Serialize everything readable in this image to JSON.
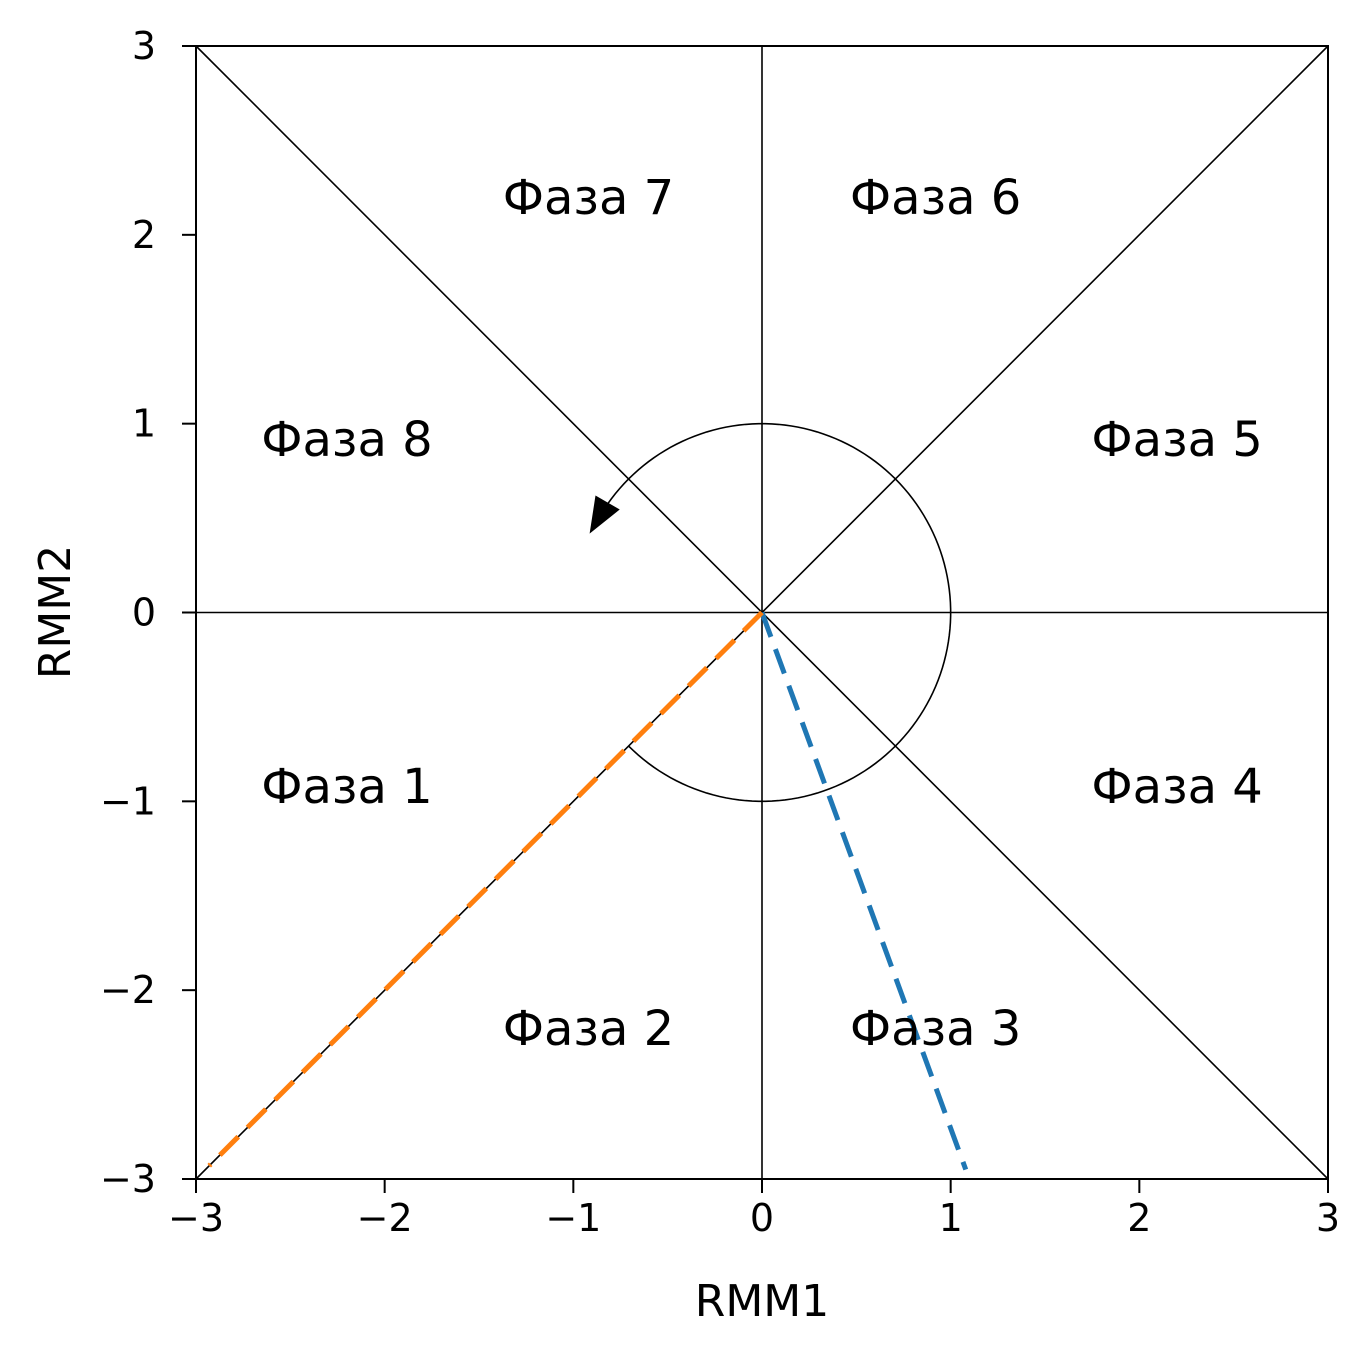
{
  "chart_data": {
    "type": "line",
    "title": "",
    "xlabel": "RMM1",
    "ylabel": "RMM2",
    "xlim": [
      -3,
      3
    ],
    "ylim": [
      -3,
      3
    ],
    "xticks": [
      -3,
      -2,
      -1,
      0,
      1,
      2,
      3
    ],
    "yticks": [
      -3,
      -2,
      -1,
      0,
      1,
      2,
      3
    ],
    "xtick_labels": [
      "−3",
      "−2",
      "−1",
      "0",
      "1",
      "2",
      "3"
    ],
    "ytick_labels": [
      "−3",
      "−2",
      "−1",
      "0",
      "1",
      "2",
      "3"
    ],
    "grid": false,
    "reference_lines": [
      {
        "x": [
          -3,
          3
        ],
        "y": [
          0,
          0
        ]
      },
      {
        "x": [
          0,
          0
        ],
        "y": [
          -3,
          3
        ]
      },
      {
        "x": [
          -3,
          3
        ],
        "y": [
          3,
          -3
        ]
      },
      {
        "x": [
          -3,
          3
        ],
        "y": [
          -3,
          3
        ]
      }
    ],
    "unit_circle": {
      "radius": 1,
      "start_angle_deg": 225,
      "end_angle_deg": 510,
      "direction": "counterclockwise",
      "arrow_at_end": true
    },
    "phase_labels": [
      {
        "text": "Фаза 1",
        "x": -2.2,
        "y": -0.92
      },
      {
        "text": "Фаза 2",
        "x": -0.92,
        "y": -2.2
      },
      {
        "text": "Фаза 3",
        "x": 0.92,
        "y": -2.2
      },
      {
        "text": "Фаза 4",
        "x": 2.2,
        "y": -0.92
      },
      {
        "text": "Фаза 5",
        "x": 2.2,
        "y": 0.92
      },
      {
        "text": "Фаза 6",
        "x": 0.92,
        "y": 2.2
      },
      {
        "text": "Фаза 7",
        "x": -0.92,
        "y": 2.2
      },
      {
        "text": "Фаза 8",
        "x": -2.2,
        "y": 0.92
      }
    ],
    "series": [
      {
        "color": "#1f77b4",
        "style": "dashed",
        "x": [
          0,
          1.08
        ],
        "y": [
          0,
          -2.95
        ]
      },
      {
        "color": "#ff7f0e",
        "style": "dashed",
        "x": [
          0,
          -2.93
        ],
        "y": [
          0,
          -2.93
        ]
      }
    ]
  }
}
